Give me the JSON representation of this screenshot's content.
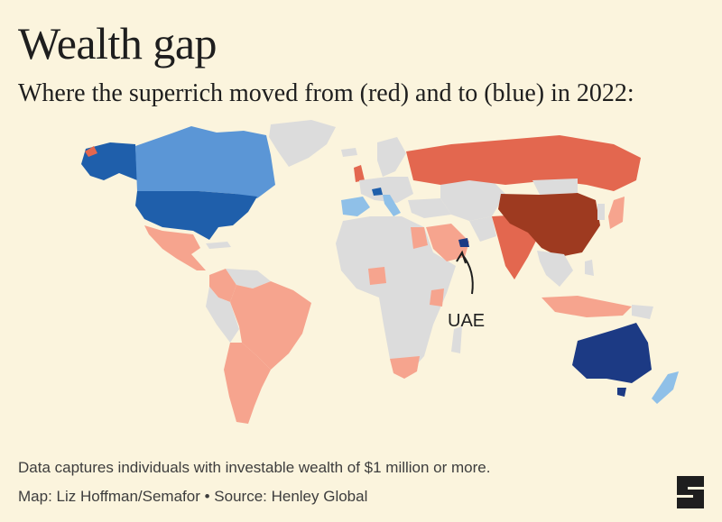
{
  "header": {
    "title": "Wealth gap",
    "subtitle": "Where the superrich moved from (red) and to (blue) in 2022:"
  },
  "map": {
    "annotation": "UAE",
    "colors": {
      "background": "#fbf4dd",
      "neutral": "#dcdcdc",
      "outflow_light": "#f6a48e",
      "outflow_medium": "#e3674f",
      "outflow_dark": "#9e3a20",
      "inflow_light": "#8fc0e8",
      "inflow_medium": "#5b96d6",
      "inflow_strong": "#1f5fab",
      "inflow_dark": "#1c3a84"
    },
    "regions": [
      {
        "name": "Alaska",
        "flow": "inflow_strong"
      },
      {
        "name": "Canada",
        "flow": "inflow_medium"
      },
      {
        "name": "United States",
        "flow": "inflow_strong"
      },
      {
        "name": "Greenland",
        "flow": "neutral"
      },
      {
        "name": "Mexico",
        "flow": "outflow_light"
      },
      {
        "name": "Brazil",
        "flow": "outflow_light"
      },
      {
        "name": "Argentina",
        "flow": "outflow_light"
      },
      {
        "name": "Colombia",
        "flow": "outflow_light"
      },
      {
        "name": "United Kingdom",
        "flow": "outflow_medium"
      },
      {
        "name": "Portugal",
        "flow": "inflow_light"
      },
      {
        "name": "Spain",
        "flow": "inflow_light"
      },
      {
        "name": "Switzerland",
        "flow": "inflow_medium"
      },
      {
        "name": "Italy",
        "flow": "inflow_light"
      },
      {
        "name": "Russia",
        "flow": "outflow_medium"
      },
      {
        "name": "China",
        "flow": "outflow_dark"
      },
      {
        "name": "India",
        "flow": "outflow_medium"
      },
      {
        "name": "Saudi Arabia",
        "flow": "outflow_light"
      },
      {
        "name": "United Arab Emirates",
        "flow": "inflow_dark"
      },
      {
        "name": "Nigeria",
        "flow": "outflow_light"
      },
      {
        "name": "South Africa",
        "flow": "outflow_light"
      },
      {
        "name": "Japan",
        "flow": "outflow_light"
      },
      {
        "name": "Indonesia",
        "flow": "outflow_light"
      },
      {
        "name": "Australia",
        "flow": "inflow_dark"
      },
      {
        "name": "New Zealand",
        "flow": "inflow_light"
      }
    ]
  },
  "footer": {
    "note": "Data captures individuals with investable wealth of $1 million or more.",
    "credit": "Map: Liz Hoffman/Semafor • Source: Henley Global"
  }
}
